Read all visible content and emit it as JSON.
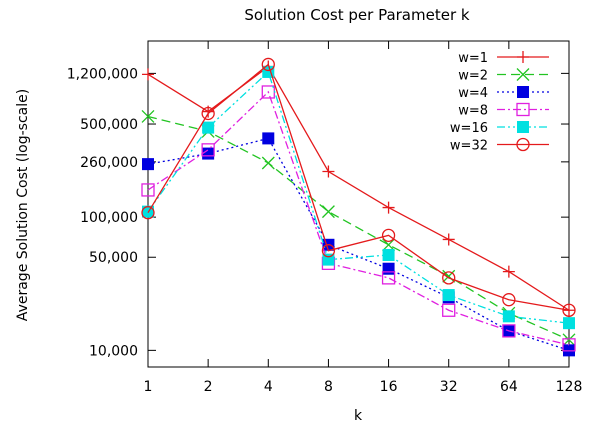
{
  "chart_data": {
    "type": "line",
    "title": "Solution Cost per Parameter k",
    "xlabel": "k",
    "ylabel": "Average Solution Cost (log-scale)",
    "x": [
      1,
      2,
      4,
      8,
      16,
      32,
      64,
      128
    ],
    "x_tick_labels": [
      "1",
      "2",
      "4",
      "8",
      "16",
      "32",
      "64",
      "128"
    ],
    "y_scale": "log",
    "ylim": [
      7500,
      2100000
    ],
    "y_ticks": [
      10000,
      50000,
      100000,
      260000,
      500000,
      1200000
    ],
    "y_tick_labels": [
      "10,000",
      "50,000",
      "100,000",
      "260,000",
      "500,000",
      "1,200,000"
    ],
    "grid": false,
    "legend_position": "top-right",
    "series": [
      {
        "name": "w=1",
        "color": "#e41a1c",
        "marker": "plus",
        "dash": "solid",
        "values": [
          1180000,
          620000,
          1350000,
          220000,
          118000,
          68000,
          39000,
          20000
        ]
      },
      {
        "name": "w=2",
        "color": "#22c422",
        "marker": "x",
        "dash": "long-dash",
        "values": [
          570000,
          440000,
          255000,
          110000,
          62000,
          36000,
          19000,
          12000
        ]
      },
      {
        "name": "w=4",
        "color": "#0000e0",
        "marker": "filled-square",
        "dash": "dotted",
        "values": [
          250000,
          300000,
          390000,
          62000,
          41000,
          25000,
          14000,
          10000
        ]
      },
      {
        "name": "w=8",
        "color": "#e020e0",
        "marker": "open-square",
        "dash": "dash-dot",
        "values": [
          160000,
          320000,
          870000,
          45000,
          35000,
          20000,
          14000,
          11000
        ]
      },
      {
        "name": "w=16",
        "color": "#00e0e0",
        "marker": "filled-square",
        "dash": "dash-dot-dot",
        "values": [
          110000,
          470000,
          1230000,
          48000,
          52000,
          26000,
          18000,
          16000
        ]
      },
      {
        "name": "w=32",
        "color": "#e41a1c",
        "marker": "circle",
        "dash": "solid",
        "values": [
          108000,
          600000,
          1400000,
          56000,
          73000,
          35000,
          24000,
          20000
        ]
      }
    ]
  }
}
